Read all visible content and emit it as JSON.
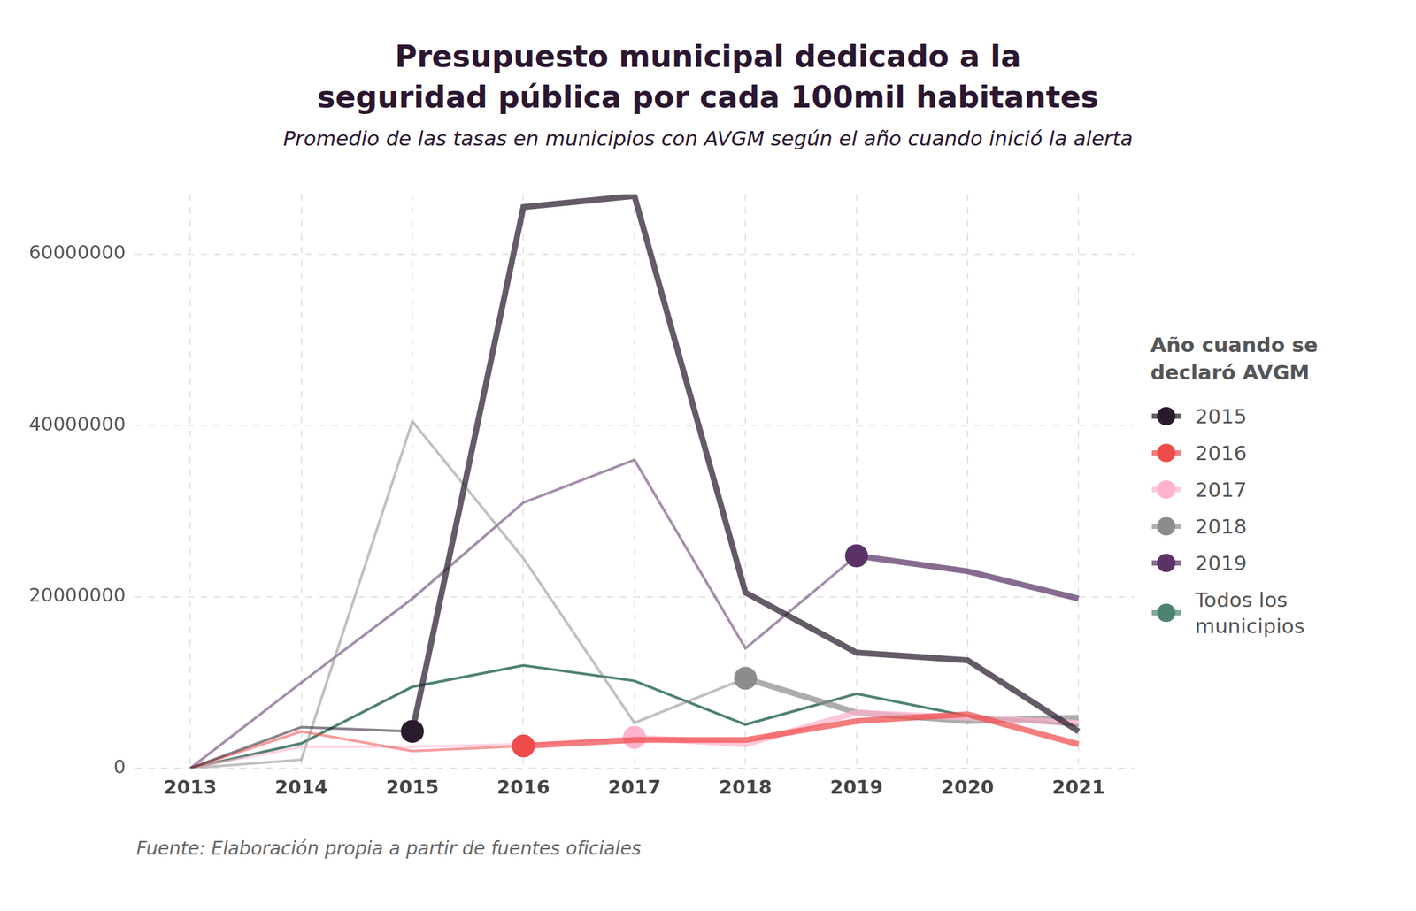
{
  "chart_data": {
    "type": "line",
    "title": "Presupuesto municipal dedicado a la seguridad pública por cada 100mil habitantes",
    "subtitle": "Promedio de las tasas en municipios con AVGM según el año cuando inició la alerta",
    "source": "Fuente: Elaboración propia a partir de fuentes oficiales",
    "legend_title": "Año cuando se declaró AVGM",
    "legend": "right",
    "grid": true,
    "marker": "circle",
    "categories": [
      "2013",
      "2014",
      "2015",
      "2016",
      "2017",
      "2018",
      "2019",
      "2020",
      "2021"
    ],
    "ylim": [
      0,
      67000000
    ],
    "yticks": [
      0,
      20000000,
      40000000,
      60000000
    ],
    "series": [
      {
        "name": "2015",
        "color": "#2a1a2e",
        "values": [
          0,
          4800000,
          4300000,
          65500000,
          66800000,
          20500000,
          13500000,
          12600000,
          4300000
        ]
      },
      {
        "name": "2016",
        "color": "#f04b4b",
        "values": [
          0,
          4300000,
          2000000,
          2600000,
          3300000,
          3300000,
          5500000,
          6300000,
          2800000
        ]
      },
      {
        "name": "2017",
        "color": "#ffb3cc",
        "values": [
          0,
          2500000,
          2500000,
          2800000,
          3600000,
          2800000,
          6500000,
          5900000,
          5300000
        ]
      },
      {
        "name": "2018",
        "color": "#8c8c8c",
        "values": [
          0,
          1000000,
          40500000,
          24500000,
          5300000,
          10500000,
          6500000,
          5500000,
          5900000
        ]
      },
      {
        "name": "2019",
        "color": "#5a3266",
        "values": [
          0,
          10000000,
          19800000,
          31000000,
          36000000,
          14000000,
          24800000,
          23000000,
          19800000
        ]
      },
      {
        "name": "Todos los municipios",
        "color": "#4e8370",
        "values": [
          0,
          2900000,
          9500000,
          12000000,
          10200000,
          5100000,
          8700000,
          6100000,
          5000000
        ]
      }
    ]
  }
}
